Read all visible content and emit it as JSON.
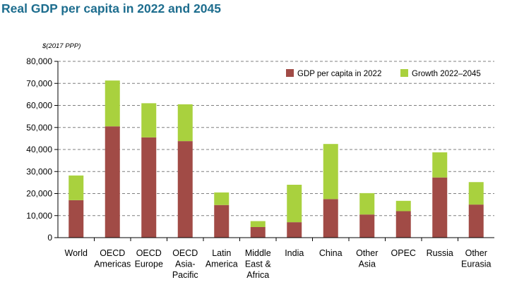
{
  "title": "Real GDP per capita in 2022 and 2045",
  "colors": {
    "title": "#1d6d8e",
    "base": "#a14b46",
    "growth": "#a9d13e",
    "grid": "#7f7f7f",
    "axis": "#000000"
  },
  "chart_data": {
    "type": "bar",
    "stacked": true,
    "unit_label": "$(2017 PPP)",
    "ylim": [
      0,
      80000
    ],
    "yticks": [
      0,
      10000,
      20000,
      30000,
      40000,
      50000,
      60000,
      70000,
      80000
    ],
    "ytick_labels": [
      "0",
      "10,000",
      "20,000",
      "30,000",
      "40,000",
      "50,000",
      "60,000",
      "70,000",
      "80,000"
    ],
    "grid": true,
    "legend_position": "top-right",
    "categories": [
      [
        "World"
      ],
      [
        "OECD",
        "Americas"
      ],
      [
        "OECD",
        "Europe"
      ],
      [
        "OECD",
        "Asia-",
        "Pacific"
      ],
      [
        "Latin",
        "America"
      ],
      [
        "Middle",
        "East &",
        "Africa"
      ],
      [
        "India"
      ],
      [
        "China"
      ],
      [
        "Other",
        "Asia"
      ],
      [
        "OPEC"
      ],
      [
        "Russia"
      ],
      [
        "Other",
        "Eurasia"
      ]
    ],
    "series": [
      {
        "name": "GDP per capita in 2022",
        "color": "#a14b46",
        "values": [
          17000,
          50500,
          45500,
          43800,
          14800,
          4800,
          7000,
          17500,
          10500,
          12000,
          27300,
          15000
        ]
      },
      {
        "name": "Growth 2022–2045",
        "color": "#a9d13e",
        "values": [
          11200,
          20800,
          15500,
          16700,
          5700,
          2700,
          17000,
          25000,
          9700,
          4700,
          11400,
          10200
        ]
      }
    ]
  }
}
